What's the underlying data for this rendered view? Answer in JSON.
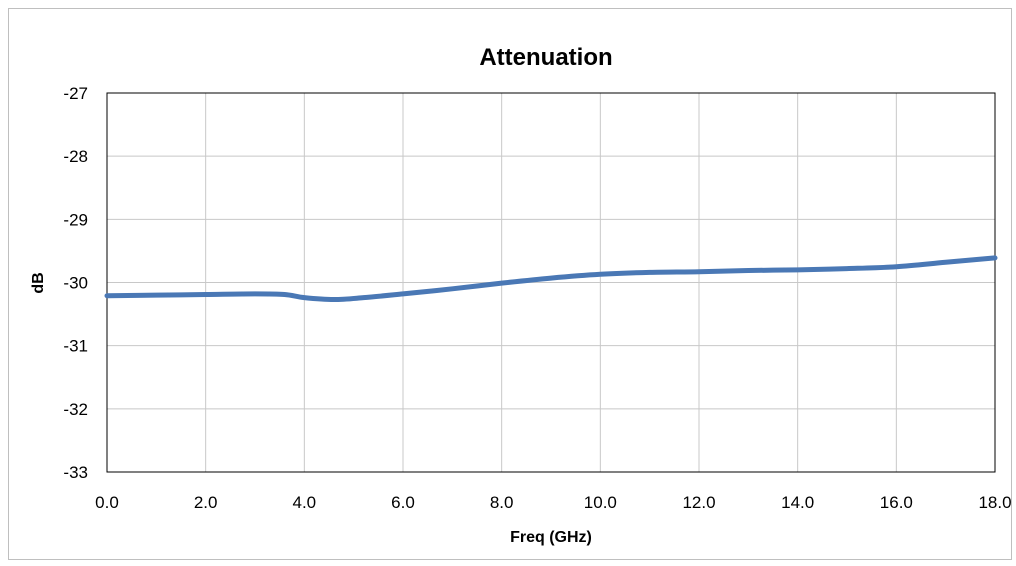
{
  "chart_data": {
    "type": "line",
    "title": "Attenuation",
    "xlabel": "Freq (GHz)",
    "ylabel": "dB",
    "xlim": [
      0,
      18
    ],
    "ylim": [
      -33,
      -27
    ],
    "x_ticks": [
      "0.0",
      "2.0",
      "4.0",
      "6.0",
      "8.0",
      "10.0",
      "12.0",
      "14.0",
      "16.0",
      "18.0"
    ],
    "y_ticks": [
      "-27",
      "-28",
      "-29",
      "-30",
      "-31",
      "-32",
      "-33"
    ],
    "grid": true,
    "series": [
      {
        "color": "#4a78b5",
        "x": [
          0,
          1,
          2,
          3,
          3.6,
          4,
          4.6,
          5.2,
          6,
          7,
          8,
          9,
          10,
          11,
          12,
          13,
          14,
          15,
          16,
          17,
          18
        ],
        "y": [
          -30.21,
          -30.2,
          -30.19,
          -30.18,
          -30.19,
          -30.24,
          -30.27,
          -30.24,
          -30.18,
          -30.1,
          -30.01,
          -29.93,
          -29.87,
          -29.84,
          -29.83,
          -29.81,
          -29.8,
          -29.78,
          -29.75,
          -29.68,
          -29.61
        ]
      }
    ]
  }
}
